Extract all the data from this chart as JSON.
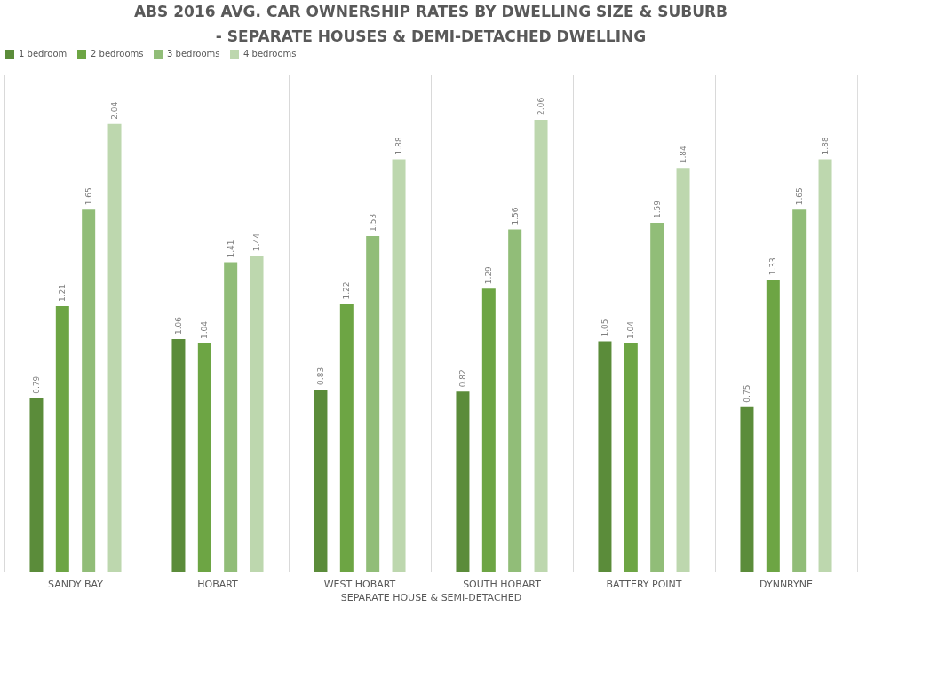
{
  "chart_data": {
    "type": "bar",
    "title": "ABS 2016 AVG. CAR OWNERSHIP RATES BY DWELLING SIZE & SUBURB\n- SEPARATE HOUSES & DEMI-DETACHED DWELLING",
    "xlabel": "SEPARATE HOUSE & SEMI-DETACHED",
    "categories": [
      "SANDY BAY",
      "HOBART",
      "WEST HOBART",
      "SOUTH HOBART",
      "BATTERY POINT",
      "DYNNRYNE"
    ],
    "series": [
      {
        "name": "1 bedroom",
        "color": "#5b8c3a",
        "values": [
          0.79,
          1.06,
          0.83,
          0.82,
          1.05,
          0.75
        ]
      },
      {
        "name": "2 bedrooms",
        "color": "#6da544",
        "values": [
          1.21,
          1.04,
          1.22,
          1.29,
          1.04,
          1.33
        ]
      },
      {
        "name": "3 bedrooms",
        "color": "#91bd78",
        "values": [
          1.65,
          1.41,
          1.53,
          1.56,
          1.59,
          1.65
        ]
      },
      {
        "name": "4 bedrooms",
        "color": "#bdd7ae",
        "values": [
          2.04,
          1.44,
          1.88,
          2.06,
          1.84,
          1.88
        ]
      }
    ],
    "data_labels": true,
    "legend": "top",
    "grid": "x"
  }
}
